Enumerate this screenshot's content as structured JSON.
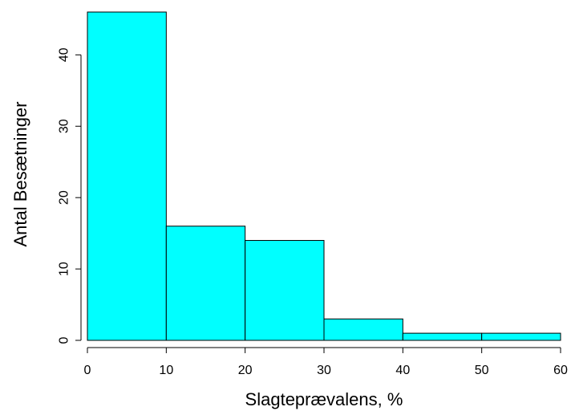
{
  "chart_data": {
    "type": "bar",
    "subtype": "histogram",
    "title": "",
    "xlabel": "Slagteprævalens, %",
    "ylabel": "Antal Besætninger",
    "bins": [
      {
        "x0": 0,
        "x1": 10,
        "count": 46
      },
      {
        "x0": 10,
        "x1": 20,
        "count": 16
      },
      {
        "x0": 20,
        "x1": 30,
        "count": 14
      },
      {
        "x0": 30,
        "x1": 40,
        "count": 3
      },
      {
        "x0": 40,
        "x1": 50,
        "count": 1
      },
      {
        "x0": 50,
        "x1": 60,
        "count": 1
      }
    ],
    "xlim": [
      0,
      60
    ],
    "ylim": [
      0,
      46
    ],
    "xticks": [
      0,
      10,
      20,
      30,
      40,
      50,
      60
    ],
    "yticks": [
      0,
      10,
      20,
      30,
      40
    ],
    "bar_color": "#00ffff",
    "edge_color": "#000000",
    "grid": false,
    "legend": "none"
  }
}
